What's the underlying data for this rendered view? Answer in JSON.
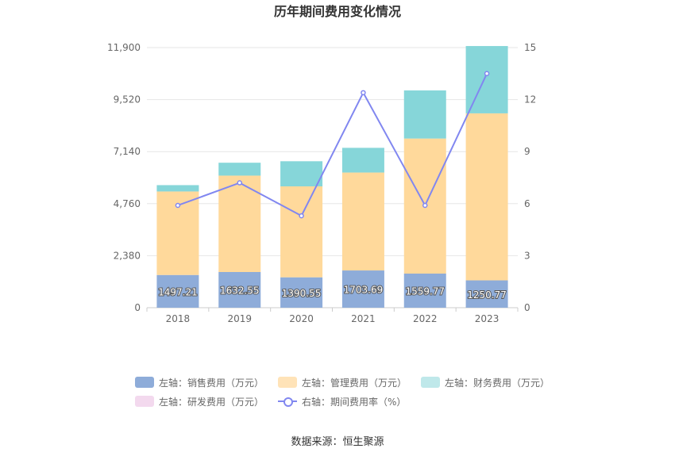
{
  "chart_data": {
    "type": "bar",
    "title": "历年期间费用变化情况",
    "categories": [
      "2018",
      "2019",
      "2020",
      "2021",
      "2022",
      "2023"
    ],
    "series": [
      {
        "name": "左轴：销售费用（万元）",
        "axis": "left",
        "color": "#8eacd9",
        "values": [
          1497.21,
          1632.55,
          1390.55,
          1703.69,
          1559.77,
          1250.77
        ],
        "show_labels": true
      },
      {
        "name": "左轴：管理费用（万元）",
        "axis": "left",
        "color": "#ffd99b",
        "values": [
          3820,
          4410,
          4160,
          4480,
          6180,
          7640
        ],
        "show_labels": false
      },
      {
        "name": "左轴：财务费用（万元）",
        "axis": "left",
        "color": "#86d6d9",
        "values": [
          290,
          590,
          1150,
          1130,
          2200,
          3080
        ],
        "show_labels": false
      },
      {
        "name": "左轴：研发费用（万元）",
        "axis": "left",
        "color": "#f3d9ee",
        "values": [
          0,
          0,
          0,
          0,
          0,
          0
        ],
        "show_labels": false
      }
    ],
    "line_series": {
      "name": "右轴：期间费用率（%）",
      "axis": "right",
      "color": "#8187f0",
      "values": [
        5.9,
        7.2,
        5.3,
        12.4,
        5.9,
        13.5
      ]
    },
    "left_axis": {
      "min": 0,
      "max": 11900,
      "ticks": [
        "0",
        "2,380",
        "4,760",
        "7,140",
        "9,520",
        "11,900"
      ]
    },
    "right_axis": {
      "min": 0,
      "max": 15,
      "ticks": [
        "0",
        "3",
        "6",
        "9",
        "12",
        "15"
      ]
    },
    "grid": true,
    "legend_position": "bottom"
  },
  "source": "数据来源：恒生聚源"
}
